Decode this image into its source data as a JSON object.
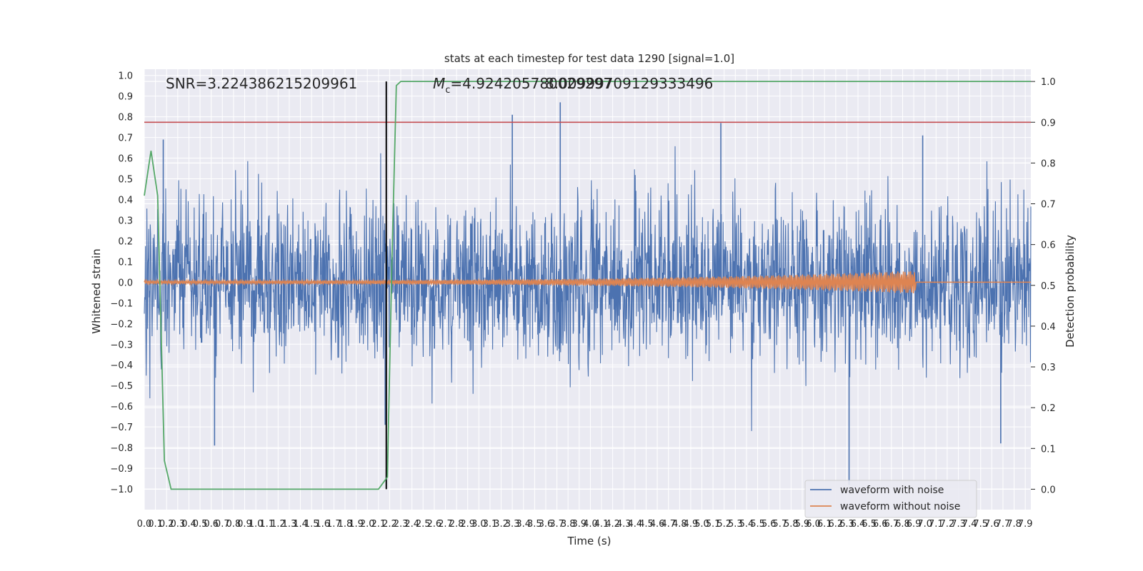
{
  "chart_data": {
    "type": "line",
    "title": "stats at each timestep for test data 1290 [signal=1.0]",
    "xlabel": "Time (s)",
    "ylabel": "Whitened strain",
    "ylabel_right": "Detection probability",
    "xlim": [
      0.0,
      7.95
    ],
    "ylim": [
      -1.1,
      1.03
    ],
    "ylim_right": [
      -0.05,
      1.03
    ],
    "x_ticks": [
      "0.0",
      "0.1",
      "0.2",
      "0.3",
      "0.4",
      "0.5",
      "0.6",
      "0.7",
      "0.8",
      "0.9",
      "1.0",
      "1.1",
      "1.2",
      "1.3",
      "1.4",
      "1.5",
      "1.6",
      "1.7",
      "1.8",
      "1.9",
      "2.0",
      "2.1",
      "2.2",
      "2.3",
      "2.4",
      "2.5",
      "2.6",
      "2.7",
      "2.8",
      "2.9",
      "3.0",
      "3.1",
      "3.2",
      "3.3",
      "3.4",
      "3.5",
      "3.6",
      "3.7",
      "3.8",
      "3.9",
      "4.0",
      "4.1",
      "4.2",
      "4.3",
      "4.4",
      "4.5",
      "4.6",
      "4.7",
      "4.8",
      "4.9",
      "5.0",
      "5.1",
      "5.2",
      "5.3",
      "5.4",
      "5.5",
      "5.6",
      "5.7",
      "5.8",
      "5.9",
      "6.0",
      "6.1",
      "6.2",
      "6.3",
      "6.4",
      "6.5",
      "6.6",
      "6.7",
      "6.8",
      "6.9",
      "7.0",
      "7.1",
      "7.2",
      "7.3",
      "7.4",
      "7.5",
      "7.6",
      "7.7",
      "7.8",
      "7.9"
    ],
    "y_ticks": [
      "1.0",
      "0.9",
      "0.8",
      "0.7",
      "0.6",
      "0.5",
      "0.4",
      "0.3",
      "0.2",
      "0.1",
      "0.0",
      "-0.1",
      "-0.2",
      "-0.3",
      "-0.4",
      "-0.5",
      "-0.6",
      "-0.7",
      "-0.8",
      "-0.9",
      "-1.0"
    ],
    "y_ticks_right": [
      "1.0",
      "0.9",
      "0.8",
      "0.7",
      "0.6",
      "0.5",
      "0.4",
      "0.3",
      "0.2",
      "0.1",
      "0.0"
    ],
    "annotations": {
      "snr": "SNR=3.224386215209961",
      "mc": "=4.924205780029297",
      "mc_symbol": "M",
      "mc_subscript": "c",
      "overlay": "8.00999709129333496"
    },
    "threshold_right": 0.9,
    "signal_marker_x": 2.17,
    "waveform_with_noise": {
      "typical_amplitude": 0.35,
      "peaks": [
        {
          "x": 0.17,
          "y": 0.69
        },
        {
          "x": 0.63,
          "y": -0.79
        },
        {
          "x": 3.3,
          "y": 0.81
        },
        {
          "x": 3.73,
          "y": 0.87
        },
        {
          "x": 5.17,
          "y": 0.77
        },
        {
          "x": 6.32,
          "y": -0.98
        },
        {
          "x": 6.98,
          "y": 0.71
        },
        {
          "x": 7.68,
          "y": -0.78
        },
        {
          "x": 2.16,
          "y": -0.69
        }
      ]
    },
    "waveform_without_noise": {
      "start_x": 0.0,
      "merger_x": 6.92,
      "amplitude_start": 0.008,
      "amplitude_peak": 0.055
    },
    "series": [
      {
        "name": "detection_probability",
        "axis": "right",
        "x": [
          0.0,
          0.06,
          0.12,
          0.18,
          0.24,
          0.4,
          0.8,
          1.2,
          1.6,
          2.0,
          2.1,
          2.18,
          2.22,
          2.26,
          2.3,
          2.4,
          2.8,
          3.5,
          4.5,
          5.5,
          6.5,
          7.5,
          7.95
        ],
        "values": [
          0.72,
          0.83,
          0.72,
          0.07,
          0.0,
          0.0,
          0.0,
          0.0,
          0.0,
          0.0,
          0.0,
          0.03,
          0.55,
          0.99,
          1.0,
          1.0,
          1.0,
          1.0,
          1.0,
          1.0,
          1.0,
          1.0,
          1.0
        ]
      }
    ],
    "legend": {
      "position": "bottom-right",
      "entries": [
        {
          "label": "waveform with noise",
          "color": "#4c72b0"
        },
        {
          "label": "waveform without noise",
          "color": "#dd8452"
        }
      ]
    },
    "colors": {
      "noise": "#4c72b0",
      "clean": "#dd8452",
      "probability": "#55a868",
      "threshold": "#c44e52",
      "marker": "#000000",
      "plot_bg": "#eaeaf2",
      "grid": "#ffffff"
    }
  }
}
